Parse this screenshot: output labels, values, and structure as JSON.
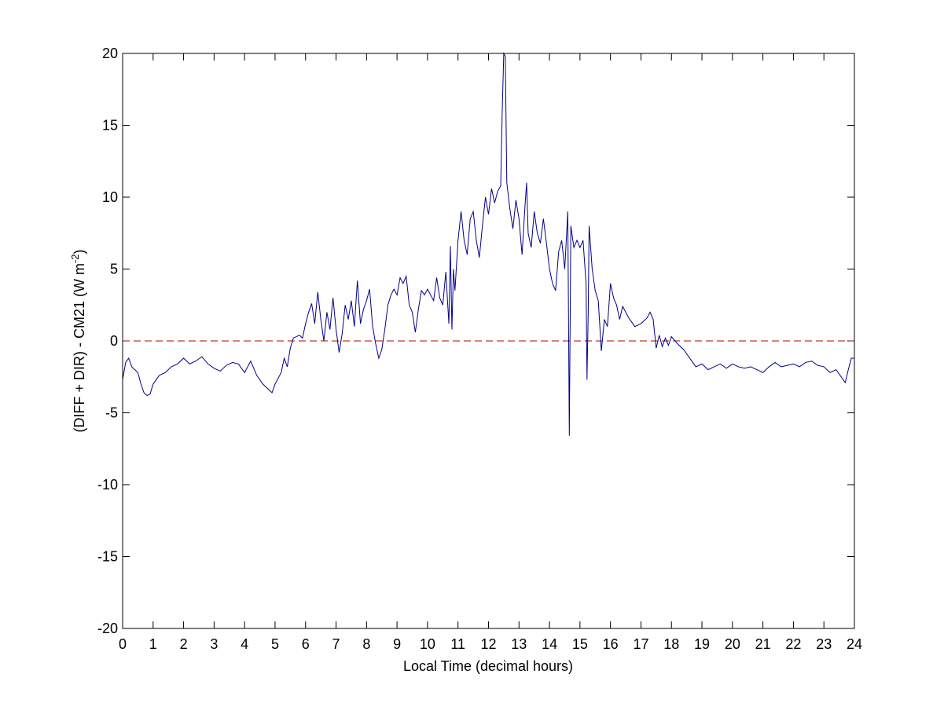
{
  "chart_data": {
    "type": "line",
    "xlabel": "Local Time (decimal hours)",
    "ylabel": [
      "(DIFF + DIR) - CM21 (W m",
      "-2",
      ")"
    ],
    "xlim": [
      0,
      24
    ],
    "ylim": [
      -20,
      20
    ],
    "xticks": [
      0,
      1,
      2,
      3,
      4,
      5,
      6,
      7,
      8,
      9,
      10,
      11,
      12,
      13,
      14,
      15,
      16,
      17,
      18,
      19,
      20,
      21,
      22,
      23,
      24
    ],
    "yticks": [
      -20,
      -15,
      -10,
      -5,
      0,
      5,
      10,
      15,
      20
    ],
    "reference_line": {
      "value": 0,
      "color": "#c0392b",
      "dash": true
    },
    "x": [
      0,
      0.1,
      0.2,
      0.3,
      0.4,
      0.5,
      0.6,
      0.7,
      0.8,
      0.9,
      1.0,
      1.2,
      1.4,
      1.6,
      1.8,
      2.0,
      2.2,
      2.4,
      2.6,
      2.8,
      3.0,
      3.2,
      3.4,
      3.6,
      3.8,
      4.0,
      4.2,
      4.4,
      4.6,
      4.8,
      4.9,
      5.0,
      5.2,
      5.3,
      5.4,
      5.5,
      5.6,
      5.8,
      5.9,
      6.0,
      6.1,
      6.2,
      6.3,
      6.4,
      6.5,
      6.6,
      6.7,
      6.8,
      6.9,
      7.0,
      7.1,
      7.2,
      7.3,
      7.4,
      7.5,
      7.6,
      7.7,
      7.8,
      7.9,
      8.0,
      8.1,
      8.2,
      8.3,
      8.4,
      8.5,
      8.6,
      8.7,
      8.8,
      8.9,
      9.0,
      9.1,
      9.2,
      9.3,
      9.4,
      9.5,
      9.6,
      9.7,
      9.8,
      9.9,
      10.0,
      10.1,
      10.2,
      10.3,
      10.4,
      10.5,
      10.6,
      10.7,
      10.75,
      10.8,
      10.85,
      10.9,
      11.0,
      11.1,
      11.2,
      11.3,
      11.4,
      11.5,
      11.6,
      11.7,
      11.8,
      11.9,
      12.0,
      12.1,
      12.2,
      12.3,
      12.4,
      12.45,
      12.5,
      12.55,
      12.6,
      12.7,
      12.8,
      12.9,
      13.0,
      13.1,
      13.2,
      13.25,
      13.3,
      13.4,
      13.5,
      13.6,
      13.7,
      13.8,
      13.9,
      14.0,
      14.1,
      14.2,
      14.3,
      14.4,
      14.5,
      14.6,
      14.62,
      14.65,
      14.68,
      14.7,
      14.8,
      14.9,
      15.0,
      15.1,
      15.2,
      15.23,
      15.27,
      15.3,
      15.4,
      15.5,
      15.6,
      15.7,
      15.8,
      15.9,
      16.0,
      16.1,
      16.2,
      16.3,
      16.4,
      16.5,
      16.6,
      16.8,
      17.0,
      17.2,
      17.3,
      17.4,
      17.5,
      17.6,
      17.7,
      17.8,
      17.9,
      18.0,
      18.2,
      18.4,
      18.6,
      18.8,
      19.0,
      19.2,
      19.4,
      19.6,
      19.8,
      20.0,
      20.2,
      20.4,
      20.6,
      20.8,
      21.0,
      21.2,
      21.4,
      21.6,
      21.8,
      22.0,
      22.2,
      22.4,
      22.6,
      22.8,
      23.0,
      23.2,
      23.4,
      23.6,
      23.7,
      23.8,
      23.9,
      24.0
    ],
    "series": [
      {
        "color": "#00008b",
        "values": [
          -2.7,
          -1.5,
          -1.2,
          -1.8,
          -2.0,
          -2.2,
          -3.0,
          -3.6,
          -3.8,
          -3.7,
          -3.0,
          -2.4,
          -2.2,
          -1.8,
          -1.6,
          -1.2,
          -1.6,
          -1.4,
          -1.1,
          -1.6,
          -1.9,
          -2.1,
          -1.7,
          -1.5,
          -1.6,
          -2.2,
          -1.4,
          -2.4,
          -3.0,
          -3.4,
          -3.6,
          -3.0,
          -2.2,
          -1.2,
          -1.8,
          -0.5,
          0.2,
          0.4,
          0.2,
          1.2,
          2.0,
          2.6,
          1.2,
          3.4,
          1.5,
          0.0,
          2.0,
          0.8,
          3.0,
          0.8,
          -0.8,
          0.5,
          2.5,
          1.5,
          2.8,
          1.0,
          4.2,
          1.2,
          2.2,
          2.8,
          3.6,
          1.0,
          -0.2,
          -1.2,
          -0.6,
          0.8,
          2.5,
          3.2,
          3.6,
          3.2,
          4.4,
          4.0,
          4.5,
          2.5,
          2.0,
          0.6,
          2.2,
          3.5,
          3.2,
          3.6,
          3.2,
          2.8,
          4.4,
          3.0,
          2.5,
          4.8,
          1.2,
          6.6,
          0.8,
          5.0,
          3.5,
          7.0,
          9.0,
          7.0,
          6.0,
          8.5,
          9.0,
          7.0,
          5.8,
          8.0,
          10.0,
          8.8,
          10.6,
          9.6,
          10.4,
          10.8,
          16.0,
          20.0,
          19.8,
          11.0,
          9.2,
          7.8,
          9.8,
          8.5,
          6.0,
          9.5,
          11.0,
          7.5,
          6.5,
          9.0,
          7.5,
          6.8,
          8.5,
          6.8,
          5.0,
          4.0,
          3.5,
          6.2,
          7.0,
          5.0,
          9.0,
          3.0,
          -6.6,
          2.0,
          8.0,
          6.5,
          7.0,
          6.5,
          7.0,
          4.0,
          -2.7,
          2.0,
          8.0,
          5.0,
          3.5,
          2.8,
          -0.7,
          1.5,
          1.0,
          4.0,
          3.0,
          2.5,
          1.5,
          2.4,
          2.0,
          1.6,
          1.0,
          1.2,
          1.6,
          2.0,
          1.5,
          -0.5,
          0.4,
          -0.4,
          0.2,
          -0.3,
          0.3,
          -0.2,
          -0.6,
          -1.2,
          -1.8,
          -1.6,
          -2.0,
          -1.8,
          -1.6,
          -1.9,
          -1.6,
          -1.8,
          -1.9,
          -1.8,
          -2.0,
          -2.2,
          -1.8,
          -1.5,
          -1.8,
          -1.7,
          -1.6,
          -1.8,
          -1.5,
          -1.4,
          -1.7,
          -1.8,
          -2.2,
          -2.0,
          -2.6,
          -2.9,
          -2.0,
          -1.2,
          -1.2
        ]
      }
    ]
  }
}
